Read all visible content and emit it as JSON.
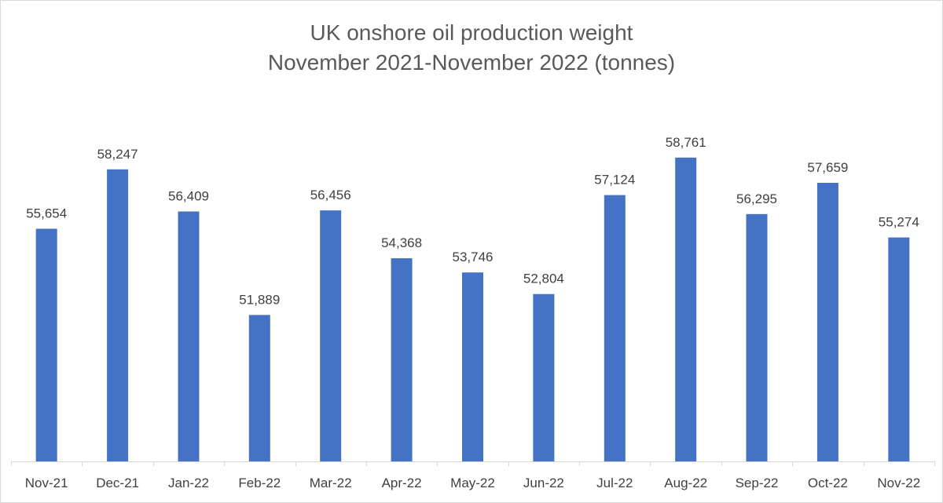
{
  "chart_data": {
    "type": "bar",
    "title_lines": [
      "UK onshore oil production weight",
      "November 2021-November 2022 (tonnes)"
    ],
    "categories": [
      "Nov-21",
      "Dec-21",
      "Jan-22",
      "Feb-22",
      "Mar-22",
      "Apr-22",
      "May-22",
      "Jun-22",
      "Jul-22",
      "Aug-22",
      "Sep-22",
      "Oct-22",
      "Nov-22"
    ],
    "series": [
      {
        "values": [
          55654,
          58247,
          56409,
          51889,
          56456,
          54368,
          53746,
          52804,
          57124,
          58761,
          56295,
          57659,
          55274
        ],
        "data_labels": [
          "55,654",
          "58,247",
          "56,409",
          "51,889",
          "56,456",
          "54,368",
          "53,746",
          "52,804",
          "57,124",
          "58,761",
          "56,295",
          "57,659",
          "55,274"
        ]
      }
    ],
    "xlabel": "",
    "ylabel": "",
    "ylim": [
      45500,
      60000
    ],
    "y_axis_visible": false,
    "grid": false,
    "legend": "none",
    "colors": {
      "bar": "#4472c4",
      "text": "#404040",
      "title": "#595959",
      "axis": "#d9d9d9"
    }
  }
}
